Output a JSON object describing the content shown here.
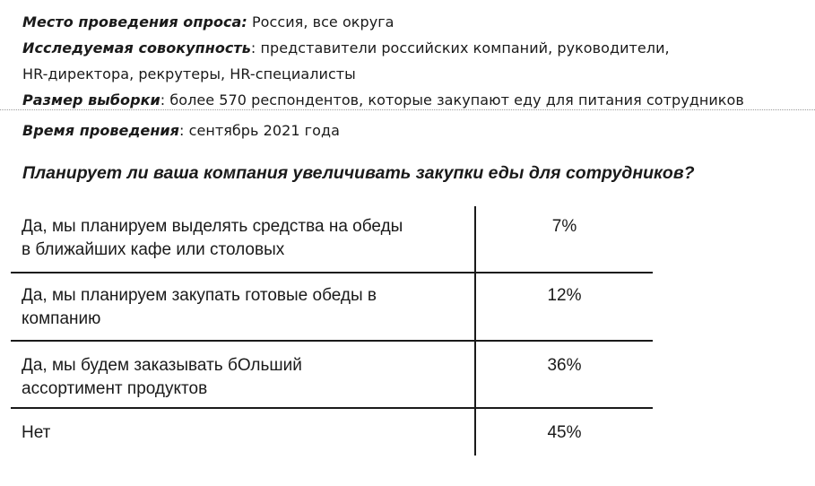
{
  "survey_info": {
    "location_label": "Место проведения опроса:",
    "location_value": " Россия, все округа",
    "population_label": "Исследуемая совокупность",
    "population_value_1": ": представители российских компаний, руководители,",
    "population_value_2": "HR-директора, рекрутеры, HR-специалисты",
    "sample_label": "Размер выборки",
    "sample_value": ": более 570 респондентов, которые закупают еду для питания сотрудников",
    "time_label": "Время проведения",
    "time_value": ": сентябрь 2021 года"
  },
  "question": "Планирует ли ваша компания увеличивать закупки еды для сотрудников?",
  "chart_data": {
    "type": "table",
    "categories": [
      "Да, мы планируем выделять средства на обеды в ближайших кафе или столовых",
      "Да, мы планируем закупать готовые обеды в компанию",
      "Да, мы будем заказывать бОльший ассортимент продуктов",
      "Нет"
    ],
    "values": [
      7,
      12,
      36,
      45
    ],
    "rows": [
      {
        "label_1": "Да, мы планируем выделять средства на обеды",
        "label_2": "в ближайших кафе или столовых",
        "value": "7%"
      },
      {
        "label_1": "Да, мы планируем закупать готовые обеды в",
        "label_2": "компанию",
        "value": "12%"
      },
      {
        "label_1": "Да, мы будем заказывать бОльший",
        "label_2": "ассортимент продуктов",
        "value": "36%"
      },
      {
        "label_1": "Нет",
        "label_2": "",
        "value": "45%"
      }
    ]
  }
}
